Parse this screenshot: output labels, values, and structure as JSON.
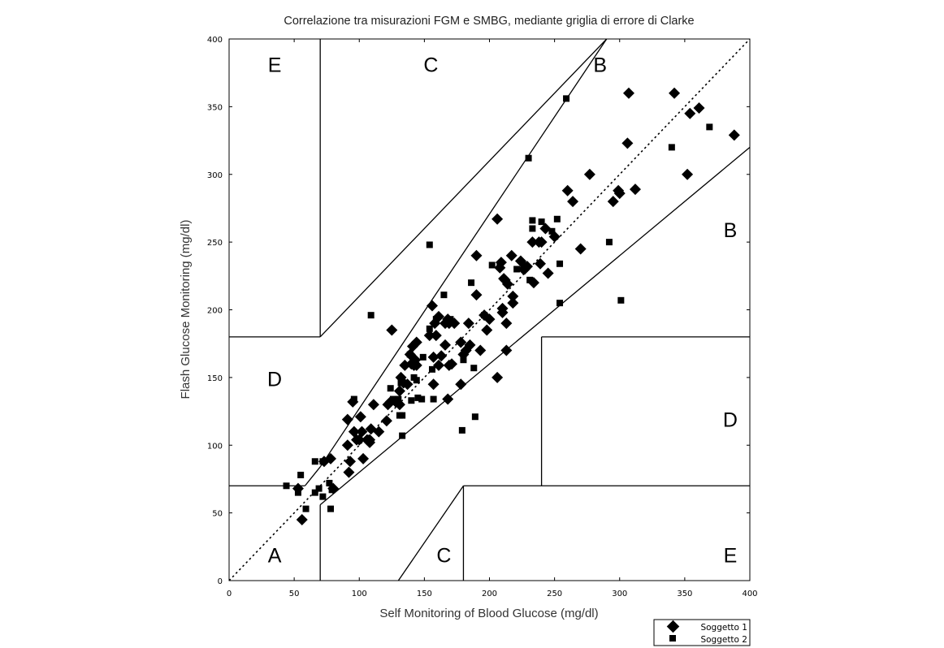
{
  "chart_data": {
    "type": "scatter",
    "title": "Correlazione tra misurazioni FGM e SMBG, mediante griglia di errore di Clarke",
    "xlabel": "Self Monitoring of Blood Glucose (mg/dl)",
    "ylabel": "Flash Glucose Monitoring (mg/dl)",
    "xlim": [
      0,
      400
    ],
    "ylim": [
      0,
      400
    ],
    "x_ticks": [
      0,
      50,
      100,
      150,
      200,
      250,
      300,
      350,
      400
    ],
    "y_ticks": [
      0,
      50,
      100,
      150,
      200,
      250,
      300,
      350,
      400
    ],
    "grid": false,
    "legend_position": "bottom-right",
    "zone_labels": [
      {
        "text": "E",
        "x": 35,
        "y": 381
      },
      {
        "text": "C",
        "x": 155,
        "y": 381
      },
      {
        "text": "B",
        "x": 285,
        "y": 381
      },
      {
        "text": "B",
        "x": 385,
        "y": 259
      },
      {
        "text": "D",
        "x": 35,
        "y": 149
      },
      {
        "text": "D",
        "x": 385,
        "y": 119
      },
      {
        "text": "A",
        "x": 35,
        "y": 19
      },
      {
        "text": "C",
        "x": 165,
        "y": 19
      },
      {
        "text": "E",
        "x": 385,
        "y": 19
      }
    ],
    "zone_boundaries": [
      {
        "x": [
          0,
          400
        ],
        "y": [
          0,
          400
        ],
        "style": "dotted"
      },
      {
        "x": [
          70,
          70
        ],
        "y": [
          0,
          56
        ],
        "style": "solid"
      },
      {
        "x": [
          70,
          400
        ],
        "y": [
          56,
          320
        ],
        "style": "solid"
      },
      {
        "x": [
          58.3,
          70
        ],
        "y": [
          70,
          84
        ],
        "style": "solid"
      },
      {
        "x": [
          70,
          290
        ],
        "y": [
          84,
          400
        ],
        "style": "solid"
      },
      {
        "x": [
          70,
          70
        ],
        "y": [
          180,
          400
        ],
        "style": "solid"
      },
      {
        "x": [
          0,
          70
        ],
        "y": [
          180,
          180
        ],
        "style": "solid"
      },
      {
        "x": [
          70,
          290
        ],
        "y": [
          180,
          400
        ],
        "style": "solid"
      },
      {
        "x": [
          0,
          58.3
        ],
        "y": [
          70,
          70
        ],
        "style": "solid"
      },
      {
        "x": [
          130,
          180
        ],
        "y": [
          0,
          70
        ],
        "style": "solid"
      },
      {
        "x": [
          180,
          180
        ],
        "y": [
          0,
          70
        ],
        "style": "solid"
      },
      {
        "x": [
          180,
          400
        ],
        "y": [
          70,
          70
        ],
        "style": "solid"
      },
      {
        "x": [
          240,
          240
        ],
        "y": [
          70,
          180
        ],
        "style": "solid"
      },
      {
        "x": [
          240,
          400
        ],
        "y": [
          180,
          180
        ],
        "style": "solid"
      }
    ],
    "series": [
      {
        "name": "Soggetto 1",
        "marker": "diamond",
        "color": "#000000",
        "points": [
          [
            53,
            68
          ],
          [
            56,
            45
          ],
          [
            73,
            88
          ],
          [
            78,
            90
          ],
          [
            80,
            68
          ],
          [
            91,
            100
          ],
          [
            91,
            119
          ],
          [
            92,
            80
          ],
          [
            93,
            88
          ],
          [
            95,
            132
          ],
          [
            96,
            110
          ],
          [
            98,
            104
          ],
          [
            100,
            104
          ],
          [
            101,
            121
          ],
          [
            102,
            110
          ],
          [
            103,
            90
          ],
          [
            106,
            104
          ],
          [
            108,
            104
          ],
          [
            108,
            102
          ],
          [
            109,
            112
          ],
          [
            111,
            130
          ],
          [
            115,
            110
          ],
          [
            121,
            118
          ],
          [
            122,
            130
          ],
          [
            124,
            132
          ],
          [
            125,
            185
          ],
          [
            128,
            132
          ],
          [
            131,
            140
          ],
          [
            131,
            130
          ],
          [
            132,
            150
          ],
          [
            134,
            146
          ],
          [
            135,
            159
          ],
          [
            137,
            145
          ],
          [
            139,
            167
          ],
          [
            140,
            160
          ],
          [
            141,
            173
          ],
          [
            142,
            159
          ],
          [
            143,
            163
          ],
          [
            144,
            176
          ],
          [
            144,
            159
          ],
          [
            154,
            181
          ],
          [
            156,
            203
          ],
          [
            157,
            145
          ],
          [
            157,
            165
          ],
          [
            158,
            190
          ],
          [
            159,
            181
          ],
          [
            161,
            159
          ],
          [
            161,
            195
          ],
          [
            163,
            166
          ],
          [
            166,
            190
          ],
          [
            166,
            174
          ],
          [
            168,
            134
          ],
          [
            168,
            193
          ],
          [
            169,
            159
          ],
          [
            169,
            190
          ],
          [
            171,
            160
          ],
          [
            173,
            190
          ],
          [
            178,
            145
          ],
          [
            178,
            176
          ],
          [
            180,
            167
          ],
          [
            182,
            170
          ],
          [
            184,
            190
          ],
          [
            185,
            174
          ],
          [
            190,
            240
          ],
          [
            190,
            211
          ],
          [
            193,
            170
          ],
          [
            196,
            196
          ],
          [
            198,
            185
          ],
          [
            200,
            193
          ],
          [
            206,
            267
          ],
          [
            206,
            150
          ],
          [
            208,
            231
          ],
          [
            209,
            235
          ],
          [
            210,
            198
          ],
          [
            210,
            201
          ],
          [
            211,
            223
          ],
          [
            212,
            222
          ],
          [
            213,
            190
          ],
          [
            213,
            170
          ],
          [
            214,
            219
          ],
          [
            217,
            240
          ],
          [
            218,
            205
          ],
          [
            218,
            210
          ],
          [
            224,
            236
          ],
          [
            226,
            230
          ],
          [
            227,
            230
          ],
          [
            229,
            232
          ],
          [
            233,
            250
          ],
          [
            234,
            220
          ],
          [
            238,
            250
          ],
          [
            239,
            234
          ],
          [
            240,
            250
          ],
          [
            243,
            260
          ],
          [
            245,
            227
          ],
          [
            250,
            254
          ],
          [
            260,
            288
          ],
          [
            264,
            280
          ],
          [
            270,
            245
          ],
          [
            277,
            300
          ],
          [
            295,
            280
          ],
          [
            299,
            288
          ],
          [
            300,
            286
          ],
          [
            306,
            323
          ],
          [
            307,
            360
          ],
          [
            312,
            289
          ],
          [
            342,
            360
          ],
          [
            352,
            300
          ],
          [
            354,
            345
          ],
          [
            361,
            349
          ],
          [
            388,
            329
          ]
        ]
      },
      {
        "name": "Soggetto 2",
        "marker": "square",
        "color": "#000000",
        "points": [
          [
            44,
            70
          ],
          [
            53,
            65
          ],
          [
            55,
            78
          ],
          [
            59,
            53
          ],
          [
            66,
            88
          ],
          [
            66,
            65
          ],
          [
            69,
            68
          ],
          [
            72,
            88
          ],
          [
            72,
            62
          ],
          [
            77,
            72
          ],
          [
            78,
            53
          ],
          [
            79,
            67
          ],
          [
            96,
            134
          ],
          [
            109,
            196
          ],
          [
            124,
            142
          ],
          [
            126,
            134
          ],
          [
            130,
            134
          ],
          [
            131,
            122
          ],
          [
            132,
            146
          ],
          [
            133,
            122
          ],
          [
            133,
            107
          ],
          [
            139,
            167
          ],
          [
            140,
            133
          ],
          [
            142,
            150
          ],
          [
            144,
            148
          ],
          [
            145,
            135
          ],
          [
            148,
            134
          ],
          [
            149,
            165
          ],
          [
            154,
            248
          ],
          [
            154,
            186
          ],
          [
            156,
            156
          ],
          [
            157,
            134
          ],
          [
            159,
            193
          ],
          [
            165,
            211
          ],
          [
            170,
            193
          ],
          [
            179,
            111
          ],
          [
            180,
            163
          ],
          [
            186,
            220
          ],
          [
            188,
            157
          ],
          [
            189,
            121
          ],
          [
            196,
            196
          ],
          [
            202,
            233
          ],
          [
            208,
            232
          ],
          [
            221,
            230
          ],
          [
            227,
            233
          ],
          [
            230,
            312
          ],
          [
            231,
            222
          ],
          [
            233,
            260
          ],
          [
            233,
            266
          ],
          [
            240,
            265
          ],
          [
            248,
            258
          ],
          [
            252,
            267
          ],
          [
            254,
            205
          ],
          [
            254,
            234
          ],
          [
            259,
            356
          ],
          [
            292,
            250
          ],
          [
            301,
            207
          ],
          [
            340,
            320
          ],
          [
            369,
            335
          ]
        ]
      }
    ]
  }
}
